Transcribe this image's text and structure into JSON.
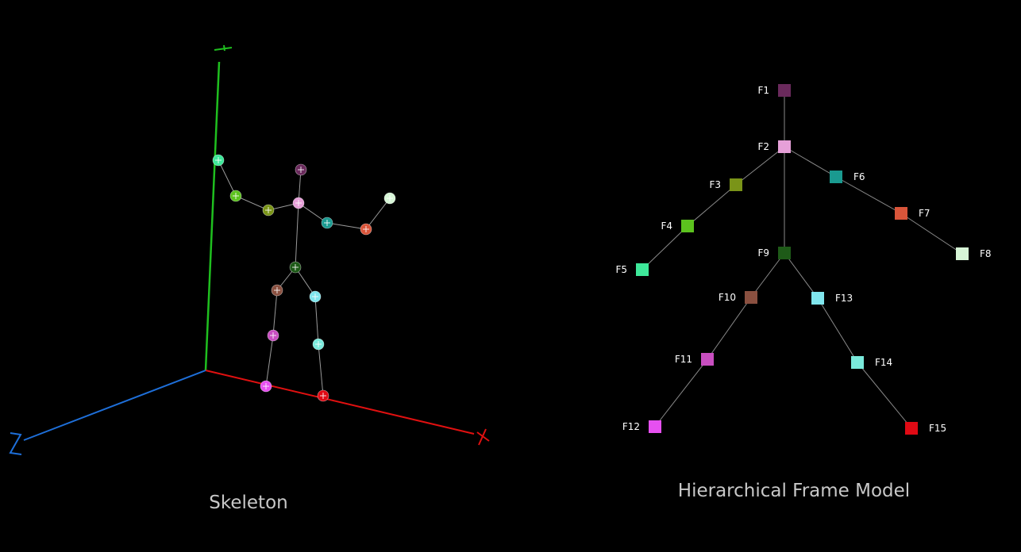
{
  "skeleton": {
    "caption": "Skeleton",
    "axes": [
      {
        "name": "Y",
        "color": "#1fbf1f"
      },
      {
        "name": "X",
        "color": "#e01010"
      },
      {
        "name": "Z",
        "color": "#1e6fd9"
      }
    ],
    "joints": [
      {
        "id": "F1",
        "color": "#6a2a5c"
      },
      {
        "id": "F2",
        "color": "#e6a0d8"
      },
      {
        "id": "F3",
        "color": "#7a9418"
      },
      {
        "id": "F4",
        "color": "#5cc21e"
      },
      {
        "id": "F5",
        "color": "#3ee89a"
      },
      {
        "id": "F6",
        "color": "#1a9a90"
      },
      {
        "id": "F7",
        "color": "#d9553a"
      },
      {
        "id": "F8",
        "color": "#d6f5d6"
      },
      {
        "id": "F9",
        "color": "#1e5a18"
      },
      {
        "id": "F10",
        "color": "#8a5040"
      },
      {
        "id": "F11",
        "color": "#c84ec0"
      },
      {
        "id": "F12",
        "color": "#e650f0"
      },
      {
        "id": "F13",
        "color": "#80e6ee"
      },
      {
        "id": "F14",
        "color": "#7aeadc"
      },
      {
        "id": "F15",
        "color": "#e00a14"
      }
    ]
  },
  "model": {
    "caption": "Hierarchical Frame Model",
    "nodes": [
      {
        "id": "F1",
        "label": "F1",
        "color": "#6a2a5c"
      },
      {
        "id": "F2",
        "label": "F2",
        "color": "#e6a0d8"
      },
      {
        "id": "F3",
        "label": "F3",
        "color": "#7a9418"
      },
      {
        "id": "F4",
        "label": "F4",
        "color": "#5cc21e"
      },
      {
        "id": "F5",
        "label": "F5",
        "color": "#3ee89a"
      },
      {
        "id": "F6",
        "label": "F6",
        "color": "#1a9a90"
      },
      {
        "id": "F7",
        "label": "F7",
        "color": "#d9553a"
      },
      {
        "id": "F8",
        "label": "F8",
        "color": "#d6f5d6"
      },
      {
        "id": "F9",
        "label": "F9",
        "color": "#1e5a18"
      },
      {
        "id": "F10",
        "label": "F10",
        "color": "#8a5040"
      },
      {
        "id": "F11",
        "label": "F11",
        "color": "#c84ec0"
      },
      {
        "id": "F12",
        "label": "F12",
        "color": "#e650f0"
      },
      {
        "id": "F13",
        "label": "F13",
        "color": "#80e6ee"
      },
      {
        "id": "F14",
        "label": "F14",
        "color": "#7aeadc"
      },
      {
        "id": "F15",
        "label": "F15",
        "color": "#e00a14"
      }
    ],
    "edges": [
      [
        "F1",
        "F2"
      ],
      [
        "F2",
        "F3"
      ],
      [
        "F3",
        "F4"
      ],
      [
        "F4",
        "F5"
      ],
      [
        "F2",
        "F6"
      ],
      [
        "F6",
        "F7"
      ],
      [
        "F7",
        "F8"
      ],
      [
        "F2",
        "F9"
      ],
      [
        "F9",
        "F10"
      ],
      [
        "F10",
        "F11"
      ],
      [
        "F11",
        "F12"
      ],
      [
        "F9",
        "F13"
      ],
      [
        "F13",
        "F14"
      ],
      [
        "F14",
        "F15"
      ]
    ]
  }
}
